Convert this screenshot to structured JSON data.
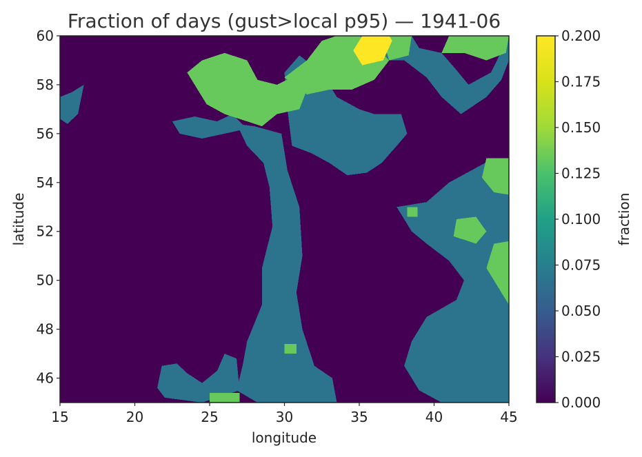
{
  "chart_data": {
    "type": "heatmap",
    "title": "Fraction of days (gust>local p95) — 1941-06",
    "xlabel": "longitude",
    "ylabel": "latitude",
    "xlim": [
      15,
      45
    ],
    "ylim": [
      45,
      60
    ],
    "xticks": [
      "15",
      "20",
      "25",
      "30",
      "35",
      "40",
      "45"
    ],
    "yticks": [
      "46",
      "48",
      "50",
      "52",
      "54",
      "56",
      "58",
      "60"
    ],
    "colormap": "viridis",
    "colorbar": {
      "label": "fraction",
      "range": [
        0,
        0.2
      ],
      "ticks": [
        "0.000",
        "0.025",
        "0.050",
        "0.075",
        "0.100",
        "0.125",
        "0.150",
        "0.175",
        "0.200"
      ]
    },
    "grid": false,
    "cell_size_deg": [
      0.25,
      0.25
    ],
    "values_note_levels": [
      0.0,
      0.0667,
      0.1333,
      0.2
    ],
    "regions": [
      {
        "level": 0.0667,
        "polys": [
          [
            [
              28.2,
              45
            ],
            [
              33.5,
              45
            ],
            [
              33.2,
              46.0
            ],
            [
              32.0,
              46.5
            ],
            [
              31.2,
              48.0
            ],
            [
              30.8,
              49.5
            ],
            [
              31.2,
              51.0
            ],
            [
              31.0,
              53.0
            ],
            [
              30.2,
              54.5
            ],
            [
              29.8,
              56.0
            ],
            [
              28.0,
              56.3
            ],
            [
              26.8,
              56.4
            ],
            [
              27.5,
              55.5
            ],
            [
              28.6,
              54.8
            ],
            [
              29.0,
              53.8
            ],
            [
              29.2,
              52.2
            ],
            [
              28.5,
              50.5
            ],
            [
              28.5,
              49.0
            ],
            [
              27.5,
              47.5
            ],
            [
              27.2,
              46.5
            ],
            [
              26.8,
              45.5
            ]
          ],
          [
            [
              30.5,
              55.5
            ],
            [
              31.8,
              55.2
            ],
            [
              33.0,
              54.8
            ],
            [
              34.2,
              54.3
            ],
            [
              35.5,
              54.4
            ],
            [
              36.5,
              54.8
            ],
            [
              37.5,
              55.5
            ],
            [
              38.2,
              56.0
            ],
            [
              37.8,
              56.8
            ],
            [
              36.0,
              56.8
            ],
            [
              35.0,
              57.0
            ],
            [
              33.5,
              57.5
            ],
            [
              32.5,
              58.5
            ],
            [
              31.0,
              59.2
            ],
            [
              30.0,
              58.5
            ],
            [
              30.2,
              57.0
            ]
          ],
          [
            [
              37.5,
              53.0
            ],
            [
              39.5,
              53.2
            ],
            [
              41.0,
              54.0
            ],
            [
              42.5,
              54.5
            ],
            [
              44.0,
              55.0
            ],
            [
              45,
              55.0
            ],
            [
              45,
              45
            ],
            [
              40.5,
              45
            ],
            [
              39.0,
              45.5
            ],
            [
              38.0,
              46.5
            ],
            [
              38.5,
              47.5
            ],
            [
              39.5,
              48.5
            ],
            [
              41.5,
              49.2
            ],
            [
              42.0,
              50.0
            ],
            [
              41.0,
              50.8
            ],
            [
              39.5,
              51.5
            ],
            [
              38.5,
              52.0
            ]
          ],
          [
            [
              33.0,
              59.0
            ],
            [
              34.0,
              59.5
            ],
            [
              34.5,
              60
            ],
            [
              38.5,
              60
            ],
            [
              39.0,
              59.5
            ],
            [
              40.5,
              59.3
            ],
            [
              41.5,
              58.6
            ],
            [
              42.3,
              58.0
            ],
            [
              43.8,
              58.5
            ],
            [
              45,
              60
            ],
            [
              45,
              59.0
            ],
            [
              44.5,
              58.2
            ],
            [
              43.5,
              57.5
            ],
            [
              41.8,
              56.8
            ],
            [
              40.5,
              57.5
            ],
            [
              39.5,
              58.3
            ],
            [
              38.0,
              59.0
            ],
            [
              36.2,
              59.0
            ],
            [
              35.0,
              58.5
            ],
            [
              33.8,
              58.6
            ]
          ],
          [
            [
              15,
              57.5
            ],
            [
              15.8,
              57.7
            ],
            [
              16.6,
              58.0
            ],
            [
              16.2,
              56.8
            ],
            [
              15.5,
              56.4
            ],
            [
              15,
              56.6
            ]
          ],
          [
            [
              21.8,
              46.5
            ],
            [
              22.8,
              46.6
            ],
            [
              23.5,
              46.2
            ],
            [
              24.5,
              45.8
            ],
            [
              25.5,
              46.3
            ],
            [
              26.0,
              47.0
            ],
            [
              26.8,
              46.8
            ],
            [
              27.0,
              45.5
            ],
            [
              26.0,
              45.3
            ],
            [
              24.5,
              45.0
            ],
            [
              22.0,
              45.2
            ],
            [
              21.5,
              45.6
            ]
          ],
          [
            [
              22.5,
              56.5
            ],
            [
              24.0,
              56.7
            ],
            [
              25.5,
              56.5
            ],
            [
              26.5,
              56.8
            ],
            [
              27.5,
              56.2
            ],
            [
              26.0,
              56.0
            ],
            [
              24.5,
              55.8
            ],
            [
              23.0,
              56.0
            ]
          ]
        ]
      },
      {
        "level": 0.1333,
        "polys": [
          [
            [
              23.5,
              58.5
            ],
            [
              24.5,
              59.0
            ],
            [
              26.0,
              59.3
            ],
            [
              27.5,
              59.0
            ],
            [
              28.2,
              58.2
            ],
            [
              29.5,
              58.0
            ],
            [
              30.5,
              58.3
            ],
            [
              31.5,
              57.8
            ],
            [
              31.0,
              57.0
            ],
            [
              29.5,
              56.8
            ],
            [
              28.5,
              56.3
            ],
            [
              27.5,
              56.5
            ],
            [
              26.0,
              56.8
            ],
            [
              24.8,
              57.2
            ],
            [
              24.2,
              57.8
            ]
          ],
          [
            [
              30.0,
              58.3
            ],
            [
              31.5,
              59.0
            ],
            [
              32.5,
              59.8
            ],
            [
              33.5,
              60
            ],
            [
              35.0,
              60
            ],
            [
              36.0,
              59.6
            ],
            [
              37.0,
              59.0
            ],
            [
              36.0,
              58.2
            ],
            [
              34.5,
              57.8
            ],
            [
              33.0,
              57.8
            ],
            [
              31.5,
              57.6
            ]
          ],
          [
            [
              36.5,
              60
            ],
            [
              38.5,
              60
            ],
            [
              38.3,
              59.2
            ],
            [
              37.0,
              59.0
            ]
          ],
          [
            [
              40.5,
              59.3
            ],
            [
              41.0,
              60
            ],
            [
              45,
              60
            ],
            [
              44.8,
              59.3
            ],
            [
              43.5,
              59.0
            ],
            [
              42.0,
              59.3
            ]
          ],
          [
            [
              43.5,
              55.0
            ],
            [
              45,
              55.0
            ],
            [
              45,
              53.5
            ],
            [
              44.0,
              53.6
            ],
            [
              43.2,
              54.2
            ]
          ],
          [
            [
              41.5,
              52.5
            ],
            [
              42.8,
              52.6
            ],
            [
              43.5,
              52.0
            ],
            [
              42.8,
              51.5
            ],
            [
              41.3,
              51.8
            ]
          ],
          [
            [
              44.0,
              51.5
            ],
            [
              45,
              51.6
            ],
            [
              45,
              49.0
            ],
            [
              44.2,
              49.8
            ],
            [
              43.5,
              50.5
            ]
          ],
          [
            [
              38.2,
              53.0
            ],
            [
              38.9,
              53.0
            ],
            [
              38.9,
              52.6
            ],
            [
              38.2,
              52.6
            ]
          ],
          [
            [
              25.0,
              45.4
            ],
            [
              27.0,
              45.4
            ],
            [
              27.0,
              45.0
            ],
            [
              25.0,
              45.0
            ]
          ],
          [
            [
              30.0,
              47.4
            ],
            [
              30.8,
              47.4
            ],
            [
              30.8,
              47.0
            ],
            [
              30.0,
              47.0
            ]
          ]
        ]
      },
      {
        "level": 0.2,
        "polys": [
          [
            [
              34.6,
              59.4
            ],
            [
              35.2,
              58.8
            ],
            [
              36.6,
              59.0
            ],
            [
              37.2,
              59.8
            ],
            [
              37.0,
              60
            ],
            [
              35.2,
              60
            ]
          ]
        ]
      }
    ]
  }
}
